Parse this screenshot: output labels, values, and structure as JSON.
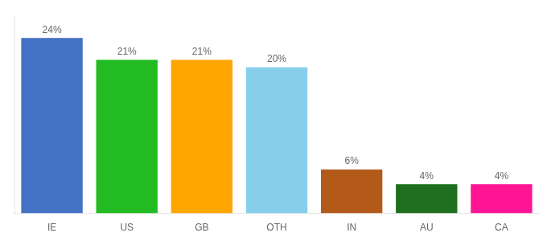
{
  "chart_data": {
    "type": "bar",
    "categories": [
      "IE",
      "US",
      "GB",
      "OTH",
      "IN",
      "AU",
      "CA"
    ],
    "values": [
      24,
      21,
      21,
      20,
      6,
      4,
      4
    ],
    "value_labels": [
      "24%",
      "21%",
      "21%",
      "20%",
      "6%",
      "4%",
      "4%"
    ],
    "colors": [
      "#4472c4",
      "#22bb22",
      "#ffa500",
      "#87ceeb",
      "#b35a1a",
      "#1e6e1e",
      "#ff1493"
    ],
    "ylim": [
      0,
      27
    ],
    "data_labels": true,
    "tick_labels": "x",
    "grid": false
  }
}
